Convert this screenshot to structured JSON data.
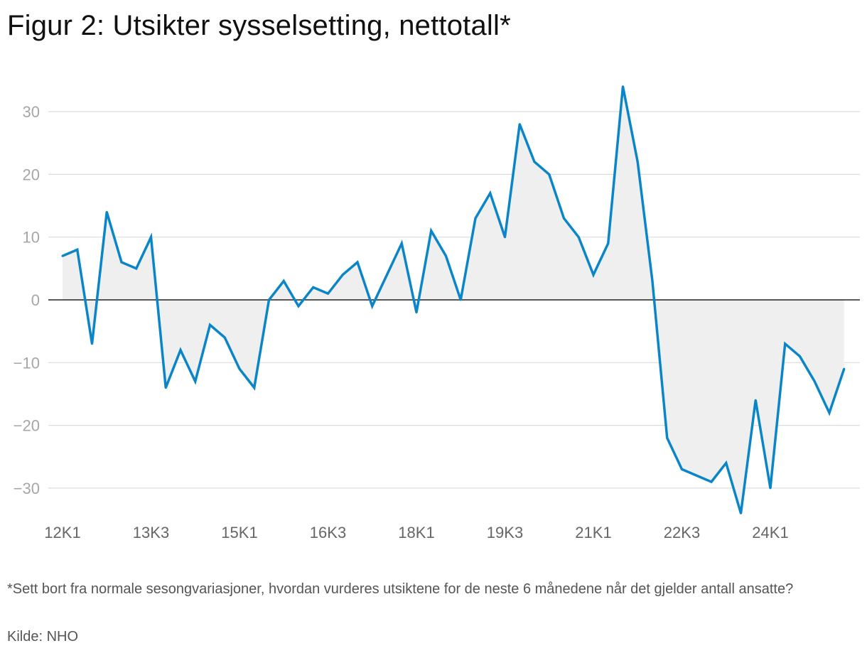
{
  "title": "Figur 2: Utsikter sysselsetting, nettotall*",
  "footnote": "*Sett bort fra normale sesongvariasjoner, hvordan vurderes utsiktene for de neste 6 månedene når det gjelder antall ansatte?",
  "source": "Kilde: NHO",
  "colors": {
    "line": "#0a86c8",
    "fill": "#efefef",
    "grid": "#dcdcdc",
    "zero": "#222222"
  },
  "chart_data": {
    "type": "area",
    "title": "Figur 2: Utsikter sysselsetting, nettotall*",
    "xlabel": "",
    "ylabel": "",
    "ylim": [
      -35,
      35
    ],
    "yticks": [
      30,
      20,
      10,
      0,
      -10,
      -20,
      -30
    ],
    "ytick_labels": [
      "30",
      "20",
      "10",
      "0",
      "−10",
      "−20",
      "−30"
    ],
    "x_start_quarter": "2012K1",
    "xticks": [
      {
        "index": 0,
        "label": "12K1"
      },
      {
        "index": 6,
        "label": "13K3"
      },
      {
        "index": 12,
        "label": "15K1"
      },
      {
        "index": 18,
        "label": "16K3"
      },
      {
        "index": 24,
        "label": "18K1"
      },
      {
        "index": 30,
        "label": "19K3"
      },
      {
        "index": 36,
        "label": "21K1"
      },
      {
        "index": 42,
        "label": "22K3"
      },
      {
        "index": 48,
        "label": "24K1"
      }
    ],
    "grid": true,
    "legend": "none",
    "series": [
      {
        "values": [
          7,
          8,
          -7,
          14,
          6,
          5,
          10,
          -14,
          -8,
          -13,
          -4,
          -6,
          -11,
          -14,
          0,
          3,
          -1,
          2,
          1,
          4,
          6,
          -1,
          4,
          9,
          -2,
          11,
          7,
          0,
          13,
          17,
          10,
          28,
          22,
          20,
          13,
          10,
          4,
          9,
          34,
          22,
          3,
          -22,
          -27,
          -28,
          -29,
          -26,
          -34,
          -16,
          -30,
          -7,
          -9,
          -13,
          -18,
          -11
        ]
      }
    ]
  }
}
